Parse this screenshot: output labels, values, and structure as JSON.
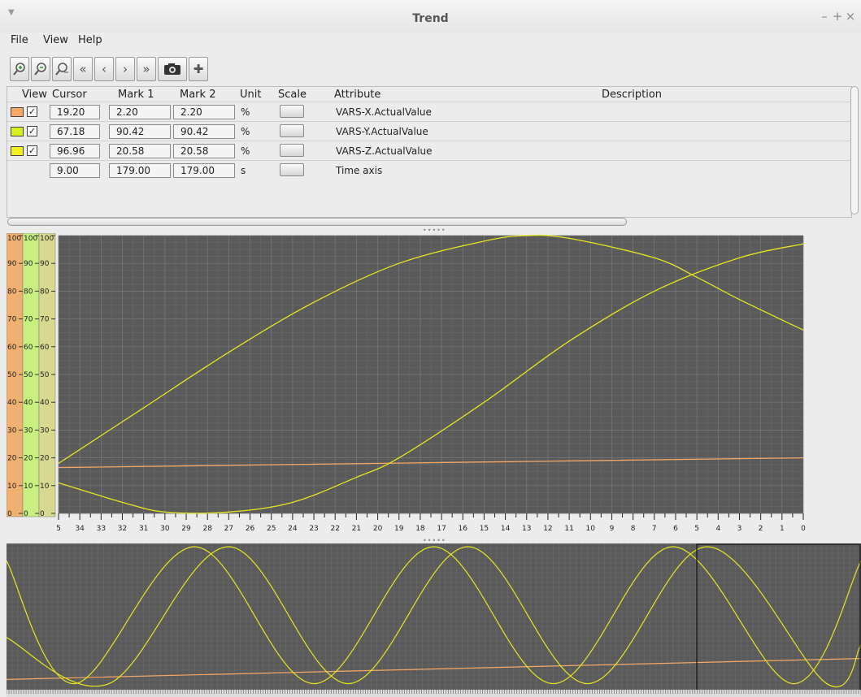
{
  "window": {
    "title": "Trend",
    "controls": [
      "–",
      "+",
      "×"
    ]
  },
  "menu": {
    "items": [
      "File",
      "View",
      "Help"
    ]
  },
  "toolbar": {
    "buttons": [
      {
        "name": "zoom-in-icon"
      },
      {
        "name": "zoom-out-icon"
      },
      {
        "name": "zoom-reset-icon"
      },
      {
        "name": "scroll-fast-left-icon",
        "glyph": "«"
      },
      {
        "name": "scroll-left-icon",
        "glyph": "‹"
      },
      {
        "name": "scroll-right-icon",
        "glyph": "›"
      },
      {
        "name": "scroll-fast-right-icon",
        "glyph": "»"
      },
      {
        "name": "camera-icon"
      },
      {
        "name": "add-icon",
        "glyph": "✚"
      }
    ]
  },
  "table": {
    "headers": {
      "view": "View",
      "cursor": "Cursor",
      "mark1": "Mark 1",
      "mark2": "Mark 2",
      "unit": "Unit",
      "scale": "Scale",
      "attribute": "Attribute",
      "description": "Description"
    },
    "rows": [
      {
        "color": "#f5a868",
        "checked": true,
        "cursor": "19.20",
        "mark1": "2.20",
        "mark2": "2.20",
        "unit": "%",
        "attribute": "VARS-X.ActualValue"
      },
      {
        "color": "#d8f020",
        "checked": true,
        "cursor": "67.18",
        "mark1": "90.42",
        "mark2": "90.42",
        "unit": "%",
        "attribute": "VARS-Y.ActualValue"
      },
      {
        "color": "#f5f020",
        "checked": true,
        "cursor": "96.96",
        "mark1": "20.58",
        "mark2": "20.58",
        "unit": "%",
        "attribute": "VARS-Z.ActualValue"
      },
      {
        "color": "",
        "checked": false,
        "cursor": "9.00",
        "mark1": "179.00",
        "mark2": "179.00",
        "unit": "s",
        "attribute": "Time axis"
      }
    ]
  },
  "chart_data": [
    {
      "type": "line",
      "y_axes": [
        {
          "color": "#f0b070",
          "ylim": [
            0,
            100
          ],
          "ticks": [
            "100",
            "90",
            "80",
            "70",
            "60",
            "50",
            "40",
            "30",
            "20",
            "10",
            "0"
          ]
        },
        {
          "color": "#c8f080",
          "ylim": [
            0,
            100
          ],
          "ticks": [
            "100",
            "90",
            "80",
            "70",
            "60",
            "50",
            "40",
            "30",
            "20",
            "10",
            "0"
          ]
        },
        {
          "color": "#d8d890",
          "ylim": [
            0,
            100
          ],
          "ticks": [
            "100",
            "90",
            "80",
            "70",
            "60",
            "50",
            "40",
            "30",
            "20",
            "10",
            "0"
          ]
        }
      ],
      "x_tick_labels": [
        "5",
        "34",
        "33",
        "32",
        "31",
        "30",
        "29",
        "28",
        "27",
        "26",
        "25",
        "24",
        "23",
        "22",
        "21",
        "20",
        "19",
        "18",
        "17",
        "16",
        "15",
        "14",
        "13",
        "12",
        "11",
        "10",
        "9",
        "8",
        "7",
        "6",
        "5",
        "4",
        "3",
        "2",
        "1",
        "0"
      ],
      "xlim": [
        35,
        0
      ],
      "grid": true,
      "series": [
        {
          "color": "#f5a868",
          "x": [
            35,
            0
          ],
          "y": [
            16.5,
            20
          ]
        },
        {
          "color": "#e6e620",
          "x": [
            35,
            31,
            27,
            23,
            19,
            15,
            13,
            11,
            7,
            5,
            3,
            0
          ],
          "y": [
            18,
            38,
            58,
            76,
            90,
            98,
            100,
            99,
            92,
            85,
            77,
            66
          ]
        },
        {
          "color": "#e6e620",
          "x": [
            35,
            32,
            30,
            27,
            24,
            21,
            19,
            15,
            11,
            7,
            3,
            0
          ],
          "y": [
            11,
            4,
            0.5,
            0.5,
            4,
            13,
            20,
            40,
            62,
            80,
            92,
            97
          ]
        }
      ]
    },
    {
      "type": "line",
      "grid": true,
      "series": [
        {
          "color": "#f5a868",
          "x": [
            0,
            100
          ],
          "y": [
            5,
            20
          ]
        },
        {
          "color": "#e6e620",
          "x": [
            0,
            8,
            22,
            36,
            50,
            64,
            78,
            92,
            100
          ],
          "y": [
            90,
            2,
            100,
            2,
            100,
            2,
            100,
            2,
            90
          ]
        },
        {
          "color": "#e6e620",
          "x": [
            0,
            12,
            26,
            40,
            54,
            68,
            82,
            96,
            100
          ],
          "y": [
            35,
            2,
            100,
            2,
            100,
            2,
            100,
            2,
            30
          ]
        }
      ]
    }
  ]
}
